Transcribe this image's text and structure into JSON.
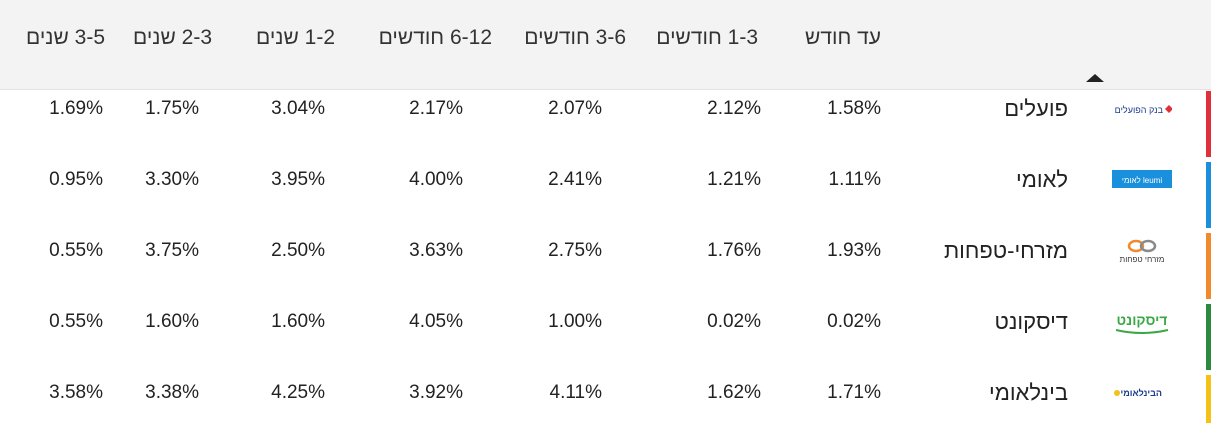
{
  "columns": [
    "עד חודש",
    "1-3 חודשים",
    "3-6 חודשים",
    "6-12 חודשים",
    "1-2 שנים",
    "2-3 שנים",
    "3-5 שנים"
  ],
  "sort": {
    "icon": "sort-ascending-arrow"
  },
  "banks": [
    {
      "name": "פועלים",
      "logo_text": "בנק הפועלים",
      "color": "#e0303a",
      "rates": [
        "1.58%",
        "2.12%",
        "2.07%",
        "2.17%",
        "3.04%",
        "1.75%",
        "1.69%"
      ]
    },
    {
      "name": "לאומי",
      "logo_text": "לאומי leumi",
      "color": "#1a8fdc",
      "rates": [
        "1.11%",
        "1.21%",
        "2.41%",
        "4.00%",
        "3.95%",
        "3.30%",
        "0.95%"
      ]
    },
    {
      "name": "מזרחי-טפחות",
      "logo_text": "מזרחי טפחות",
      "color": "#f08a2c",
      "rates": [
        "1.93%",
        "1.76%",
        "2.75%",
        "3.63%",
        "2.50%",
        "3.75%",
        "0.55%"
      ]
    },
    {
      "name": "דיסקונט",
      "logo_text": "דיסקונט",
      "color": "#2b8a3e",
      "rates": [
        "0.02%",
        "0.02%",
        "1.00%",
        "4.05%",
        "1.60%",
        "1.60%",
        "0.55%"
      ]
    },
    {
      "name": "בינלאומי",
      "logo_text": "הבינלאומי",
      "color": "#f5c116",
      "rates": [
        "1.71%",
        "1.62%",
        "4.11%",
        "3.92%",
        "4.25%",
        "3.38%",
        "3.58%"
      ]
    }
  ]
}
